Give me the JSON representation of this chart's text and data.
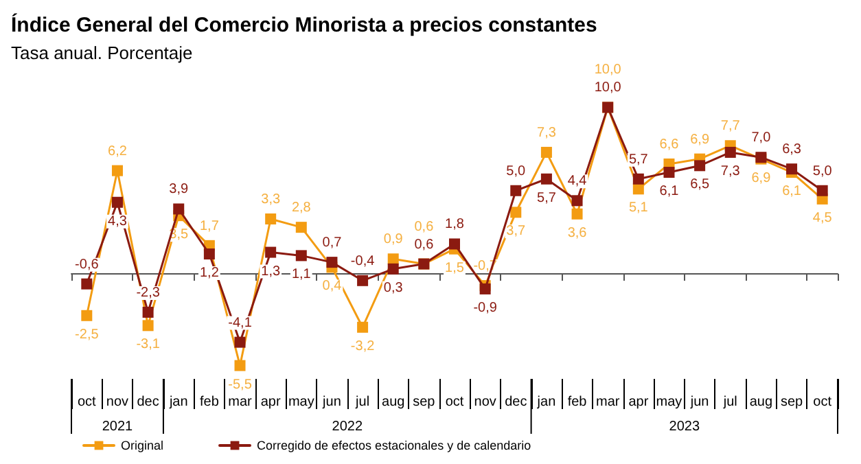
{
  "chart_data": {
    "type": "line",
    "title": "Índice General del Comercio Minorista a precios constantes",
    "subtitle": "Tasa anual. Porcentaje",
    "categories": [
      "oct",
      "nov",
      "dec",
      "jan",
      "feb",
      "mar",
      "apr",
      "may",
      "jun",
      "jul",
      "aug",
      "sep",
      "oct",
      "nov",
      "dec",
      "jan",
      "feb",
      "mar",
      "apr",
      "may",
      "jun",
      "jul",
      "aug",
      "sep",
      "oct"
    ],
    "series": [
      {
        "name": "Original",
        "color": "#f39c12",
        "values": [
          -2.5,
          6.2,
          -3.1,
          3.5,
          1.7,
          -5.5,
          3.3,
          2.8,
          0.4,
          -3.2,
          0.9,
          0.6,
          1.5,
          -0.7,
          3.7,
          7.3,
          3.6,
          10.0,
          5.1,
          6.6,
          6.9,
          7.7,
          6.9,
          6.1,
          4.5
        ],
        "value_labels": [
          "-2,5",
          "6,2",
          "-3,1",
          "3,5",
          "1,7",
          "-5,5",
          "3,3",
          "2,8",
          "0,4",
          "-3,2",
          "0,9",
          "0,6",
          "1,5",
          "-0,7",
          "3,7",
          "7,3",
          "3,6",
          "10,0",
          "5,1",
          "6,6",
          "6,9",
          "7,7",
          "6,9",
          "6,1",
          "4,5"
        ]
      },
      {
        "name": "Corregido de efectos estacionales y de calendario",
        "color": "#8b1a10",
        "values": [
          -0.6,
          4.3,
          -2.3,
          3.9,
          1.2,
          -4.1,
          1.3,
          1.1,
          0.7,
          -0.4,
          0.3,
          0.6,
          1.8,
          -0.9,
          5.0,
          5.7,
          4.4,
          10.0,
          5.7,
          6.1,
          6.5,
          7.3,
          7.0,
          6.3,
          5.0
        ],
        "value_labels": [
          "-0,6",
          "4,3",
          "-2,3",
          "3,9",
          "1,2",
          "-4,1",
          "1,3",
          "1,1",
          "0,7",
          "-0,4",
          "0,3",
          "0,6",
          "1,8",
          "-0,9",
          "5,0",
          "5,7",
          "4,4",
          "10,0",
          "5,7",
          "6,1",
          "6,5",
          "7,3",
          "7,0",
          "6,3",
          "5,0"
        ]
      }
    ],
    "annotations": [
      "2021",
      "2022",
      "2023"
    ],
    "marker": "square",
    "line_style": "solid",
    "legend": "bottom left",
    "grid": false
  }
}
